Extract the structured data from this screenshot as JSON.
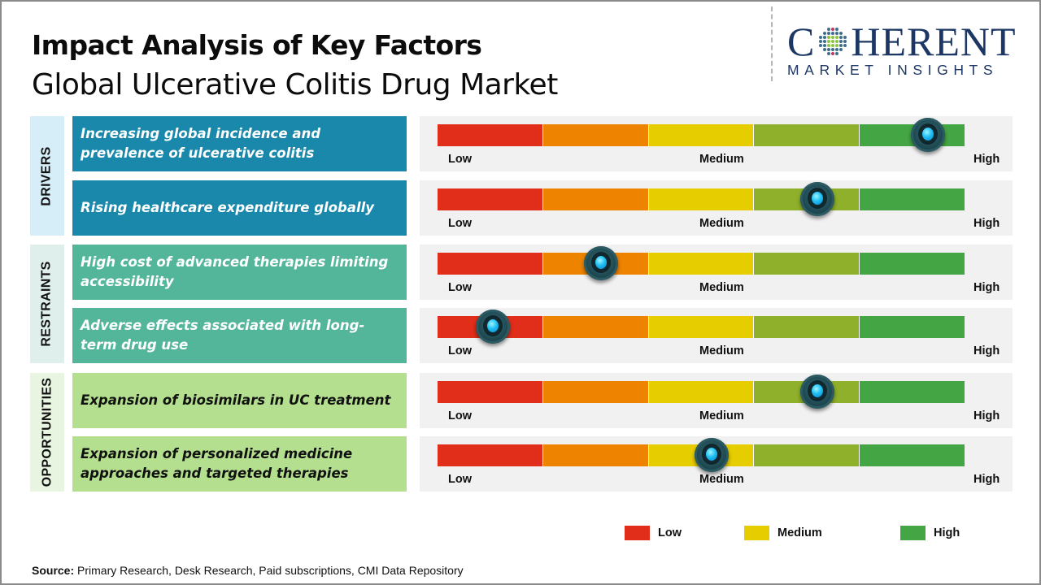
{
  "header": {
    "title": "Impact Analysis of Key Factors",
    "subtitle": "Global Ulcerative Colitis Drug Market"
  },
  "logo": {
    "brand_first_letter": "C",
    "brand_rest": "HERENT",
    "tagline": "MARKET INSIGHTS",
    "colors": {
      "text": "#1c3764",
      "dots_outer": "#3d6e8c",
      "dots_accent": "#c0395f",
      "dots_center": "#8cc63e"
    }
  },
  "scale": {
    "low_label": "Low",
    "medium_label": "Medium",
    "high_label": "High",
    "segment_colors": [
      "#e02e1a",
      "#ee8300",
      "#e6cd00",
      "#8fb02a",
      "#43a544"
    ]
  },
  "chart_data": {
    "type": "table",
    "title": "Impact Analysis of Key Factors",
    "subtitle": "Global Ulcerative Colitis Drug Market",
    "scale_range": [
      0,
      1
    ],
    "scale_labels": [
      "Low",
      "Medium",
      "High"
    ],
    "categories": [
      {
        "name": "DRIVERS",
        "label_bg": "#d6eef8",
        "factor_bg": "#1a88aa",
        "factor_text_color": "#ffffff",
        "factors": [
          {
            "label": "Increasing global incidence and prevalence of ulcerative colitis",
            "impact": 0.93,
            "level": "High"
          },
          {
            "label": "Rising healthcare expenditure globally",
            "impact": 0.72,
            "level": "Medium-High"
          }
        ]
      },
      {
        "name": "RESTRAINTS",
        "label_bg": "#dff0ec",
        "factor_bg": "#53b69b",
        "factor_text_color": "#ffffff",
        "factors": [
          {
            "label": "High cost of advanced therapies limiting accessibility",
            "impact": 0.31,
            "level": "Low-Medium"
          },
          {
            "label": "Adverse effects associated with long-term drug use",
            "impact": 0.105,
            "level": "Low"
          }
        ]
      },
      {
        "name": "OPPORTUNITIES",
        "label_bg": "#e8f5e0",
        "factor_bg": "#b3df8e",
        "factor_text_color": "#111111",
        "factors": [
          {
            "label": "Expansion of biosimilars in UC treatment",
            "impact": 0.72,
            "level": "Medium-High"
          },
          {
            "label": "Expansion of personalized medicine approaches and targeted therapies",
            "impact": 0.52,
            "level": "Medium"
          }
        ]
      }
    ],
    "legend": [
      {
        "label": "Low",
        "color": "#e02e1a"
      },
      {
        "label": "Medium",
        "color": "#e6cd00"
      },
      {
        "label": "High",
        "color": "#43a544"
      }
    ],
    "legend_position": "bottom-right"
  },
  "footer": {
    "source_label": "Source:",
    "source_text": " Primary Research, Desk Research, Paid subscriptions, CMI Data Repository"
  }
}
